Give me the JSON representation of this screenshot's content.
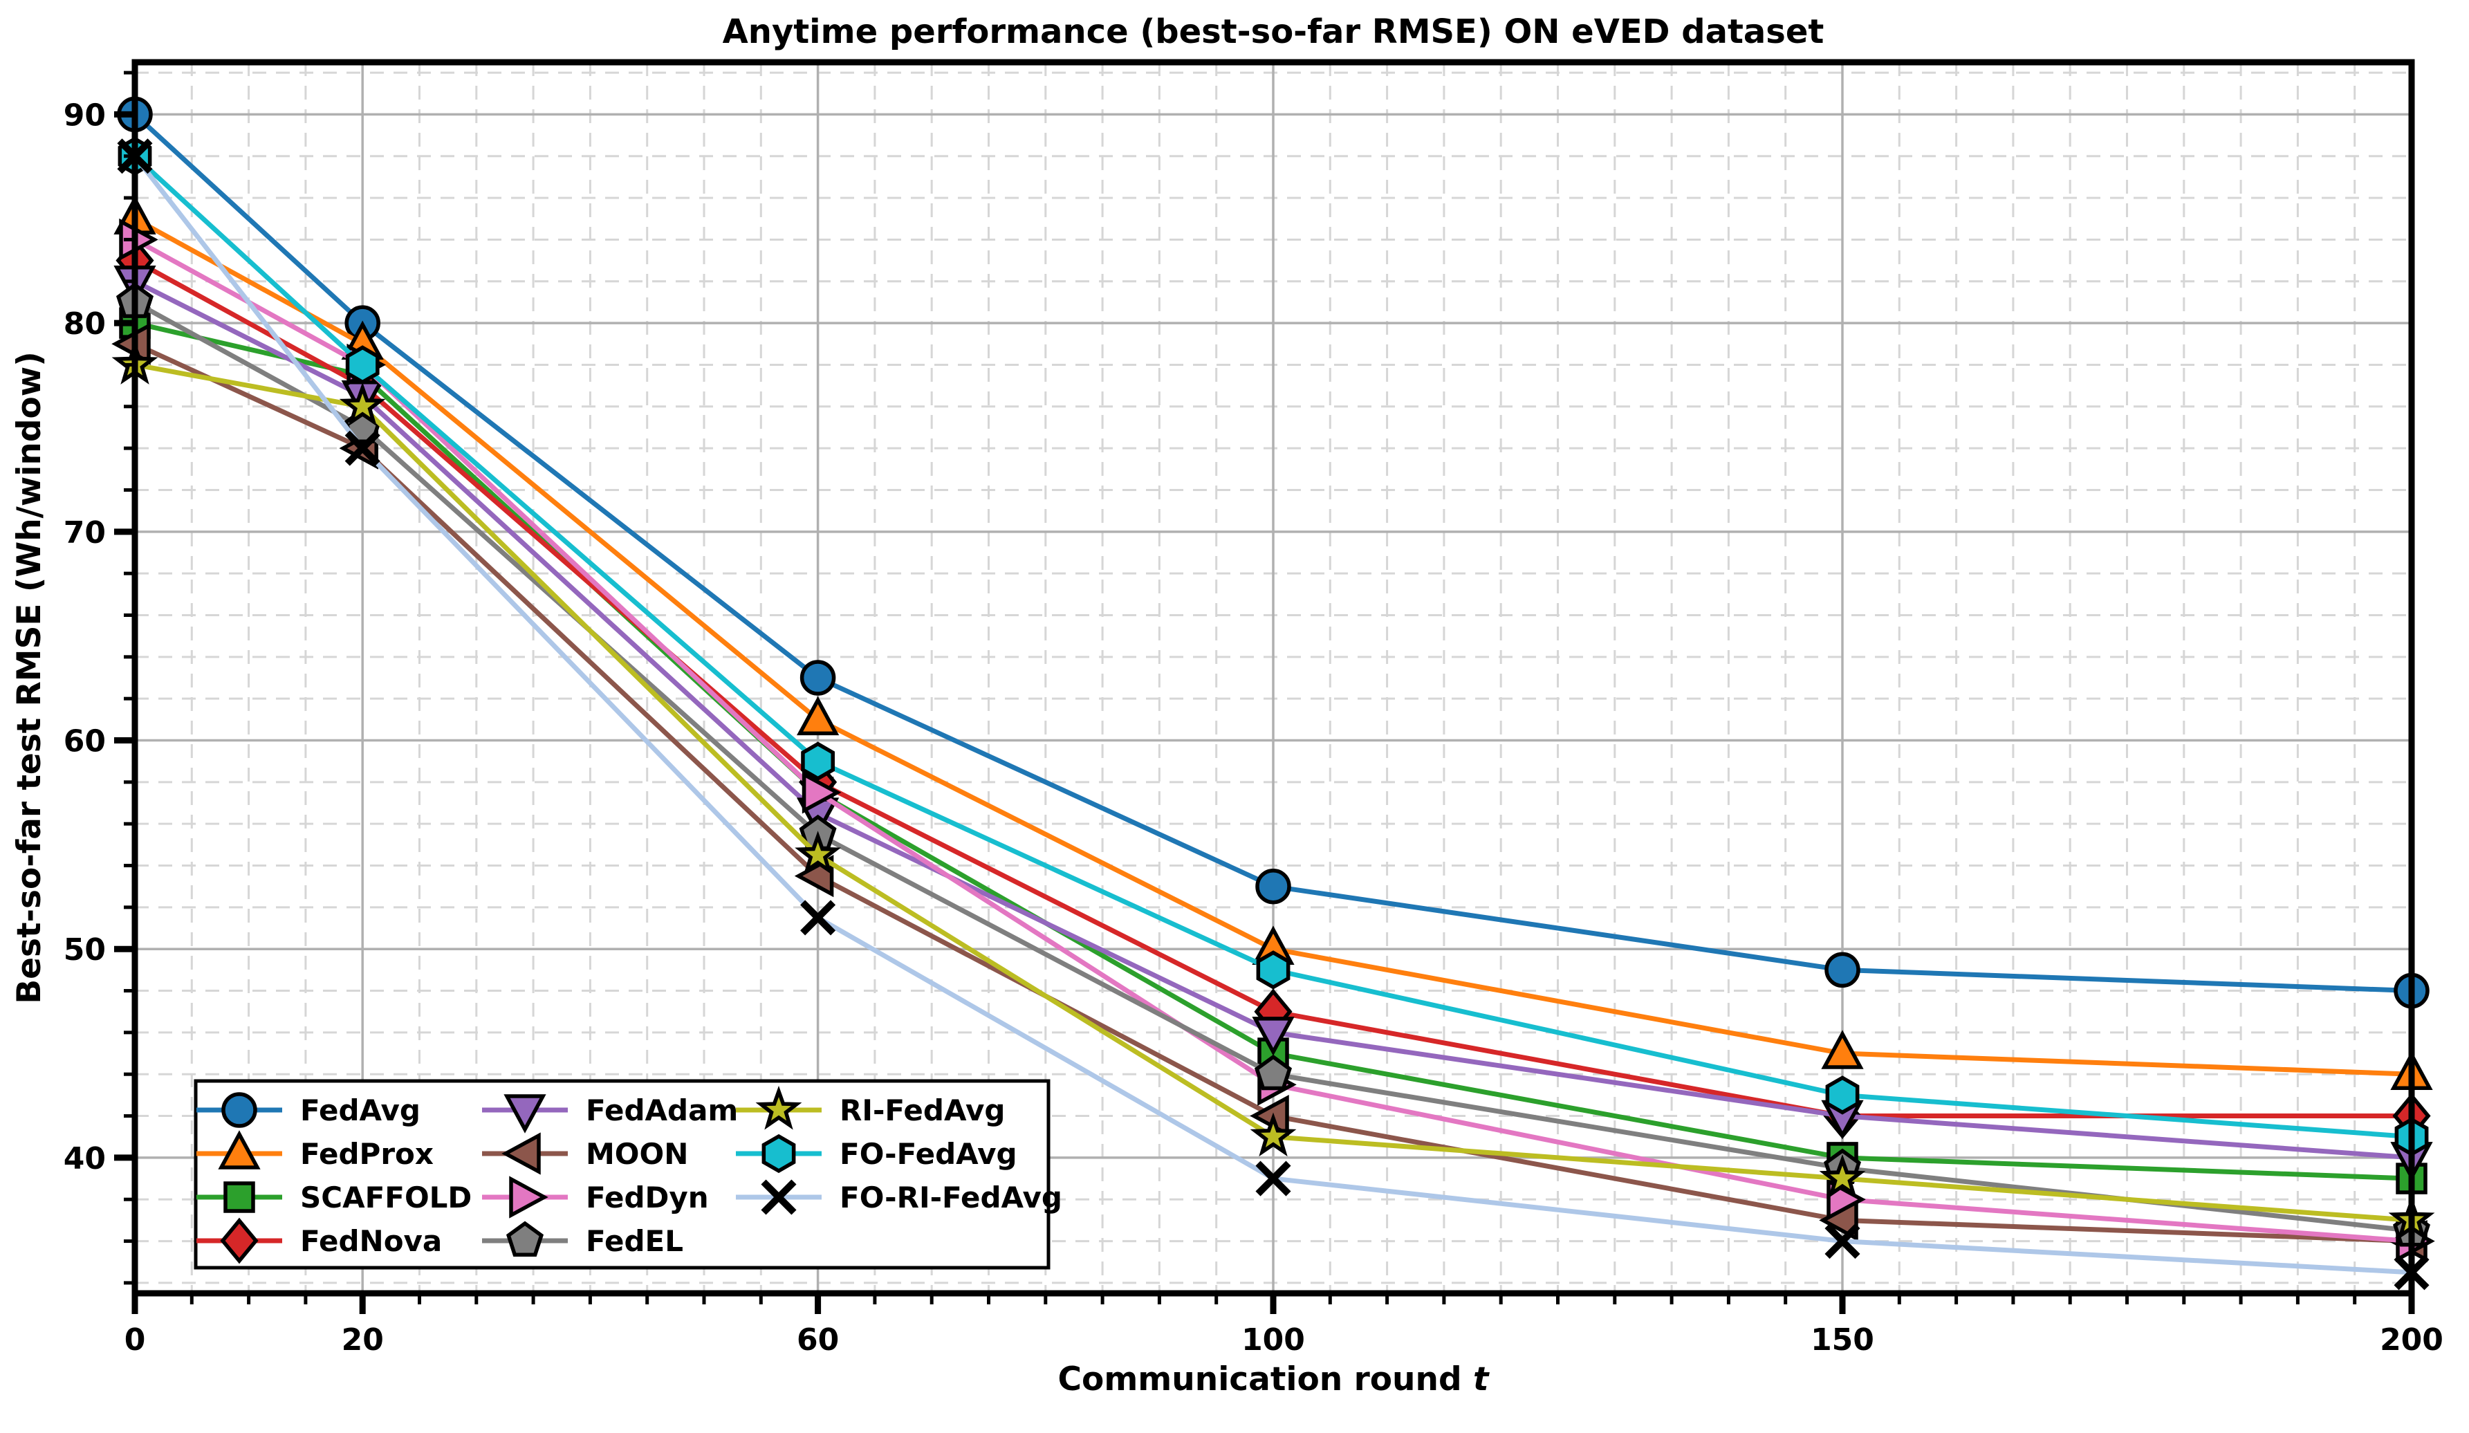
{
  "chart_data": {
    "type": "line",
    "title": "Anytime performance (best-so-far RMSE) ON eVED dataset",
    "xlabel": "Communication round ",
    "xlabel_math_var": "t",
    "ylabel": "Best-so-far test RMSE (Wh/window)",
    "x": [
      0,
      20,
      60,
      100,
      150,
      200
    ],
    "xticks": [
      0,
      20,
      60,
      100,
      150,
      200
    ],
    "yticks": [
      40,
      50,
      60,
      70,
      80,
      90
    ],
    "xlim": [
      0,
      200
    ],
    "ylim": [
      33.5,
      92.5
    ],
    "x_minor_step": 5,
    "y_minor_step": 2,
    "grid": {
      "major": true,
      "minor": true
    },
    "legend_position": "lower-left",
    "legend_rows_per_column": 4,
    "series": [
      {
        "name": "FedAvg",
        "color": "#1f77b4",
        "marker": "circle",
        "values": [
          90,
          80,
          63,
          53,
          49,
          48
        ]
      },
      {
        "name": "FedProx",
        "color": "#ff7f0e",
        "marker": "triangle_up",
        "values": [
          85,
          79,
          61,
          50,
          45,
          44
        ]
      },
      {
        "name": "SCAFFOLD",
        "color": "#2ca02c",
        "marker": "square",
        "values": [
          80,
          77.5,
          57.5,
          45,
          40,
          39
        ]
      },
      {
        "name": "FedNova",
        "color": "#d62728",
        "marker": "diamond",
        "values": [
          83,
          77,
          58,
          47,
          42,
          42
        ]
      },
      {
        "name": "FedAdam",
        "color": "#9467bd",
        "marker": "triangle_down",
        "values": [
          82,
          76.5,
          56.5,
          46,
          42,
          40
        ]
      },
      {
        "name": "MOON",
        "color": "#8c564b",
        "marker": "triangle_left",
        "values": [
          79,
          74,
          53.5,
          42,
          37,
          36
        ]
      },
      {
        "name": "FedDyn",
        "color": "#e377c2",
        "marker": "triangle_right",
        "values": [
          84,
          78,
          57.5,
          43.5,
          38,
          36
        ]
      },
      {
        "name": "FedEL",
        "color": "#7f7f7f",
        "marker": "pentagon",
        "values": [
          81,
          75,
          55.5,
          44,
          39.5,
          36.5
        ]
      },
      {
        "name": "RI-FedAvg",
        "color": "#bcbd22",
        "marker": "star",
        "values": [
          78,
          76,
          54.5,
          41,
          39,
          37
        ]
      },
      {
        "name": "FO-FedAvg",
        "color": "#17becf",
        "marker": "hexagon",
        "values": [
          88,
          78,
          59,
          49,
          43,
          41
        ]
      },
      {
        "name": "FO-RI-FedAvg",
        "color": "#aec7e8",
        "marker": "x",
        "values": [
          88,
          74,
          51.5,
          39,
          36,
          34.5
        ]
      }
    ],
    "style": {
      "major_grid_color": "#b0b0b0",
      "minor_grid_color": "#d6d6d6",
      "spine_color": "#000000",
      "marker_edge_color": "#000000"
    }
  }
}
